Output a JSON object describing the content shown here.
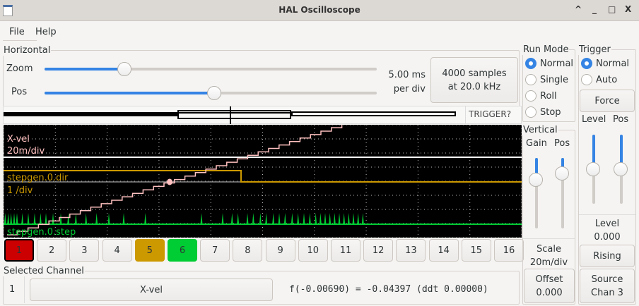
{
  "window": {
    "title": "HAL Oscilloscope",
    "buttons": {
      "shade": "^",
      "minimize": "_",
      "maximize": "□",
      "close": "X"
    }
  },
  "menu": {
    "items": [
      {
        "label": "File"
      },
      {
        "label": "Help"
      }
    ]
  },
  "horizontal": {
    "legend": "Horizontal",
    "zoom_label": "Zoom",
    "zoom_value": 0.24,
    "pos_label": "Pos",
    "pos_value": 0.51,
    "rate_line1": "5.00 ms",
    "rate_line2": "per div",
    "samples_line1": "4000 samples",
    "samples_line2": "at 20.0 kHz",
    "trigger_status": "TRIGGER?"
  },
  "plot": {
    "background": "#000000",
    "channels": [
      {
        "name": "X-vel",
        "scale": "20m/div",
        "color": "#ffc0c0"
      },
      {
        "name": "stepgen.0.dir",
        "scale": "1 /div",
        "color": "#cc9900"
      },
      {
        "name": "stepgen.0.step",
        "color": "#00cc33"
      }
    ]
  },
  "channel_buttons": [
    {
      "label": "1",
      "color": "#cc0000",
      "selected": true
    },
    {
      "label": "2"
    },
    {
      "label": "3"
    },
    {
      "label": "4"
    },
    {
      "label": "5",
      "color": "#cc9900"
    },
    {
      "label": "6",
      "color": "#00cc33"
    },
    {
      "label": "7"
    },
    {
      "label": "8"
    },
    {
      "label": "9"
    },
    {
      "label": "10"
    },
    {
      "label": "11"
    },
    {
      "label": "12"
    },
    {
      "label": "13"
    },
    {
      "label": "14"
    },
    {
      "label": "15"
    },
    {
      "label": "16"
    }
  ],
  "selected_channel": {
    "legend": "Selected Channel",
    "number": "1",
    "name": "X-vel",
    "readout": "f(-0.00690) = -0.04397 (ddt  0.00000)"
  },
  "run_mode": {
    "legend": "Run Mode",
    "options": [
      {
        "label": "Normal",
        "checked": true
      },
      {
        "label": "Single"
      },
      {
        "label": "Roll"
      },
      {
        "label": "Stop"
      }
    ]
  },
  "vertical": {
    "legend": "Vertical",
    "gain_label": "Gain",
    "pos_label": "Pos",
    "gain_value": 0.31,
    "pos_value": 0.22,
    "scale_label": "Scale",
    "scale_value": "20m/div",
    "offset_label": "Offset",
    "offset_value": "0.000"
  },
  "trigger": {
    "legend": "Trigger",
    "options": [
      {
        "label": "Normal",
        "checked": true
      },
      {
        "label": "Auto"
      }
    ],
    "force_label": "Force",
    "level_label": "Level",
    "pos_label": "Pos",
    "level_value": 0.5,
    "pos_value": 0.5,
    "level_caption": "Level",
    "level_readout": "0.000",
    "edge_label": "Rising",
    "source_label": "Source",
    "source_value": "Chan  3"
  }
}
